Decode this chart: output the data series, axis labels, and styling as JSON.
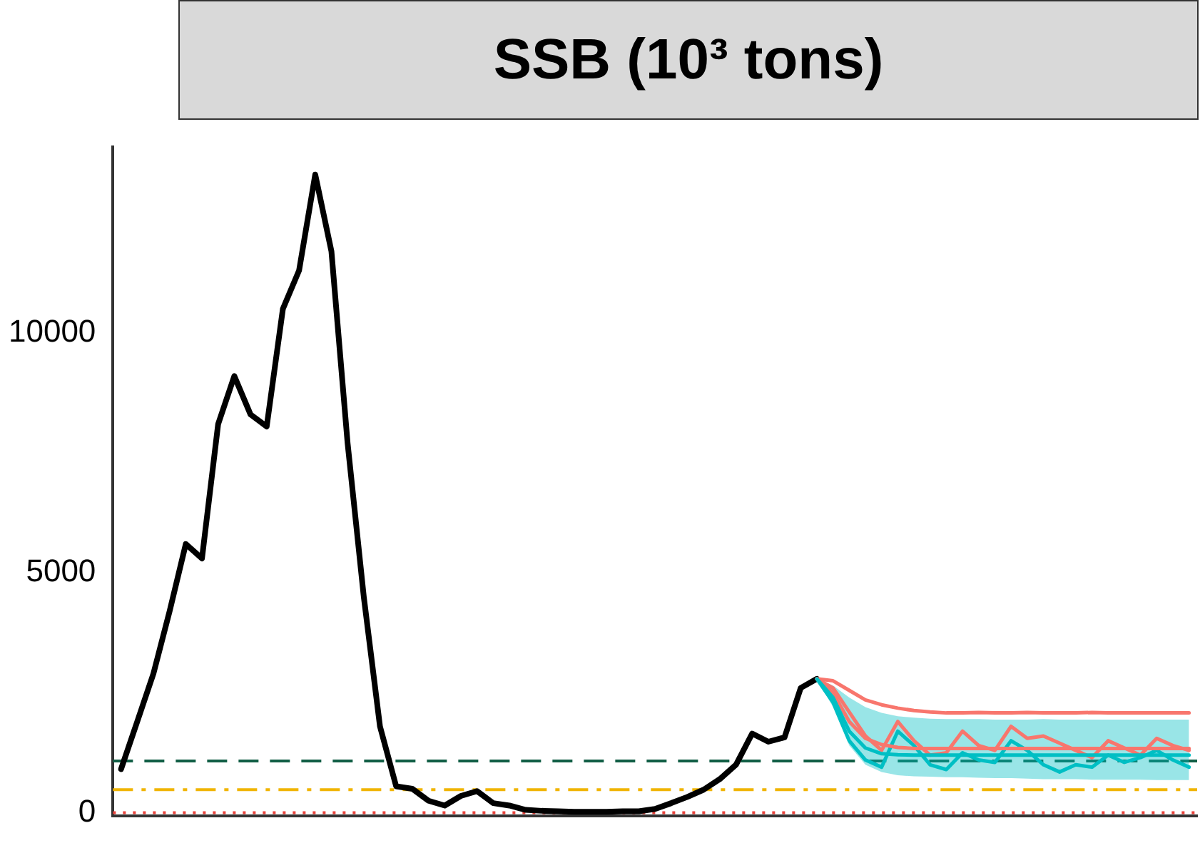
{
  "chart_data": {
    "type": "line",
    "title": "SSB (10³ tons)",
    "categories": [
      null,
      null,
      null,
      null,
      null,
      null,
      null,
      null,
      null,
      null,
      null,
      null,
      null,
      null,
      null,
      null,
      null,
      null,
      null,
      null,
      null,
      null,
      null,
      null,
      null,
      null,
      null,
      null,
      null,
      null,
      null,
      null,
      null,
      null,
      null,
      null,
      null,
      null,
      null,
      null,
      null,
      null,
      null,
      null,
      null,
      null,
      null,
      null,
      null,
      null,
      null,
      null,
      null,
      null,
      null,
      null,
      null,
      null,
      null,
      null,
      null,
      null,
      null,
      null,
      null,
      null,
      null
    ],
    "series": [
      {
        "color": "#00bfc4",
        "values": [
          null,
          null,
          null,
          null,
          null,
          null,
          null,
          null,
          null,
          null,
          null,
          null,
          null,
          null,
          null,
          null,
          null,
          null,
          null,
          null,
          null,
          null,
          null,
          null,
          null,
          null,
          null,
          null,
          null,
          null,
          null,
          null,
          null,
          null,
          null,
          null,
          null,
          null,
          null,
          null,
          null,
          null,
          null,
          2790,
          2400,
          1700,
          1350,
          1230,
          1210,
          1200,
          1200,
          1200,
          1200,
          1200,
          1200,
          1200,
          1200,
          1200,
          1200,
          1200,
          1200,
          1200,
          1200,
          1200,
          1200,
          1200,
          1200
        ],
        "lower": [
          null,
          null,
          null,
          null,
          null,
          null,
          null,
          null,
          null,
          null,
          null,
          null,
          null,
          null,
          null,
          null,
          null,
          null,
          null,
          null,
          null,
          null,
          null,
          null,
          null,
          null,
          null,
          null,
          null,
          null,
          null,
          null,
          null,
          null,
          null,
          null,
          null,
          null,
          null,
          null,
          null,
          null,
          null,
          2790,
          2200,
          1400,
          1000,
          850,
          780,
          760,
          750,
          740,
          740,
          730,
          720,
          720,
          710,
          700,
          700,
          700,
          690,
          690,
          690,
          690,
          680,
          680,
          680
        ],
        "upper": [
          null,
          null,
          null,
          null,
          null,
          null,
          null,
          null,
          null,
          null,
          null,
          null,
          null,
          null,
          null,
          null,
          null,
          null,
          null,
          null,
          null,
          null,
          null,
          null,
          null,
          null,
          null,
          null,
          null,
          null,
          null,
          null,
          null,
          null,
          null,
          null,
          null,
          null,
          null,
          null,
          null,
          null,
          null,
          2790,
          2650,
          2400,
          2200,
          2080,
          2010,
          1980,
          1960,
          1950,
          1950,
          1950,
          1940,
          1940,
          1940,
          1950,
          1940,
          1940,
          1940,
          1940,
          1940,
          1940,
          1940,
          1940,
          1940
        ]
      },
      {
        "color": "#f8766d",
        "values": [
          null,
          null,
          null,
          null,
          null,
          null,
          null,
          null,
          null,
          null,
          null,
          null,
          null,
          null,
          null,
          null,
          null,
          null,
          null,
          null,
          null,
          null,
          null,
          null,
          null,
          null,
          null,
          null,
          null,
          null,
          null,
          null,
          null,
          null,
          null,
          null,
          null,
          null,
          null,
          null,
          null,
          null,
          null,
          2790,
          2500,
          1900,
          1550,
          1420,
          1360,
          1340,
          1340,
          1340,
          1340,
          1340,
          1340,
          1340,
          1340,
          1340,
          1340,
          1340,
          1340,
          1340,
          1340,
          1340,
          1340,
          1340,
          1340
        ]
      },
      {
        "color": "#f8766d",
        "values": [
          null,
          null,
          null,
          null,
          null,
          null,
          null,
          null,
          null,
          null,
          null,
          null,
          null,
          null,
          null,
          null,
          null,
          null,
          null,
          null,
          null,
          null,
          null,
          null,
          null,
          null,
          null,
          null,
          null,
          null,
          null,
          null,
          null,
          null,
          null,
          null,
          null,
          null,
          null,
          null,
          null,
          null,
          null,
          2790,
          2750,
          2550,
          2350,
          2250,
          2180,
          2130,
          2100,
          2080,
          2080,
          2090,
          2080,
          2080,
          2090,
          2080,
          2080,
          2080,
          2090,
          2080,
          2080,
          2080,
          2080,
          2080,
          2080
        ]
      },
      {
        "color": "#f8766d",
        "values": [
          null,
          null,
          null,
          null,
          null,
          null,
          null,
          null,
          null,
          null,
          null,
          null,
          null,
          null,
          null,
          null,
          null,
          null,
          null,
          null,
          null,
          null,
          null,
          null,
          null,
          null,
          null,
          null,
          null,
          null,
          null,
          null,
          null,
          null,
          null,
          null,
          null,
          null,
          null,
          null,
          null,
          null,
          null,
          2790,
          2600,
          2100,
          1600,
          1300,
          1900,
          1500,
          1200,
          1250,
          1700,
          1400,
          1300,
          1800,
          1550,
          1600,
          1450,
          1300,
          1150,
          1500,
          1350,
          1200,
          1550,
          1400,
          1300
        ]
      },
      {
        "color": "#00bfc4",
        "values": [
          null,
          null,
          null,
          null,
          null,
          null,
          null,
          null,
          null,
          null,
          null,
          null,
          null,
          null,
          null,
          null,
          null,
          null,
          null,
          null,
          null,
          null,
          null,
          null,
          null,
          null,
          null,
          null,
          null,
          null,
          null,
          null,
          null,
          null,
          null,
          null,
          null,
          null,
          null,
          null,
          null,
          null,
          null,
          2790,
          2300,
          1500,
          1100,
          950,
          1700,
          1400,
          1000,
          900,
          1250,
          1100,
          1050,
          1500,
          1300,
          1000,
          850,
          1000,
          950,
          1200,
          1050,
          1150,
          1300,
          1100,
          950
        ]
      },
      {
        "color": "#000000",
        "values": [
          910,
          1900,
          2900,
          4200,
          5600,
          5300,
          8100,
          9100,
          8300,
          8050,
          10500,
          11300,
          13300,
          11700,
          7700,
          4500,
          1800,
          550,
          500,
          250,
          150,
          350,
          450,
          200,
          150,
          60,
          40,
          30,
          20,
          20,
          20,
          30,
          30,
          80,
          200,
          330,
          480,
          700,
          1000,
          1650,
          1480,
          1570,
          2600,
          2790,
          null,
          null,
          null,
          null,
          null,
          null,
          null,
          null,
          null,
          null,
          null,
          null,
          null,
          null,
          null,
          null,
          null,
          null,
          null,
          null,
          null,
          null,
          null
        ]
      }
    ],
    "ref_lines": [
      {
        "axis": "y",
        "value": 1080,
        "color": "#115e45",
        "line_style": "dashed"
      },
      {
        "axis": "y",
        "value": 480,
        "color": "#f0b400",
        "line_style": "dashdot"
      },
      {
        "axis": "y",
        "value": 0,
        "color": "#e8413a",
        "line_style": "dotted"
      }
    ],
    "ylim": [
      -60,
      13870
    ],
    "yticks": [
      0,
      5000,
      10000
    ],
    "grid": false,
    "legend": false,
    "tick_labels": "y",
    "marker": "none",
    "line_style": "solid"
  }
}
